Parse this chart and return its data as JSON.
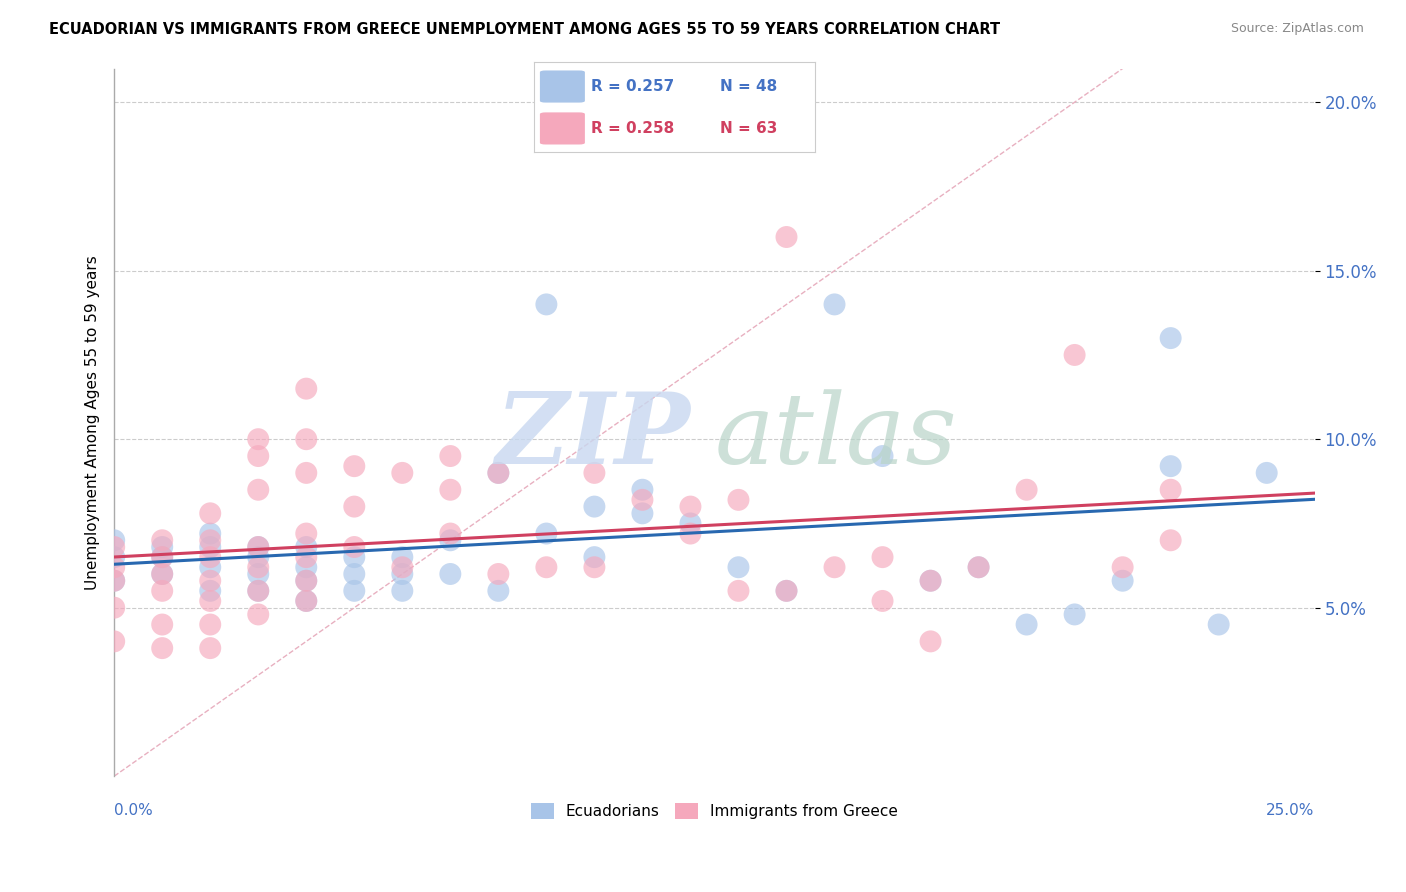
{
  "title": "ECUADORIAN VS IMMIGRANTS FROM GREECE UNEMPLOYMENT AMONG AGES 55 TO 59 YEARS CORRELATION CHART",
  "source": "Source: ZipAtlas.com",
  "ylabel": "Unemployment Among Ages 55 to 59 years",
  "legend_blue_r": "R = 0.257",
  "legend_blue_n": "N = 48",
  "legend_pink_r": "R = 0.258",
  "legend_pink_n": "N = 63",
  "xlim": [
    0.0,
    0.25
  ],
  "ylim": [
    0.0,
    0.21
  ],
  "yticks": [
    0.05,
    0.1,
    0.15,
    0.2
  ],
  "ytick_labels": [
    "5.0%",
    "10.0%",
    "15.0%",
    "20.0%"
  ],
  "blue_color": "#a8c4e8",
  "pink_color": "#f5a8bc",
  "blue_line_color": "#2868b0",
  "pink_line_color": "#d04060",
  "diagonal_color": "#e8b0c0",
  "watermark_zip": "ZIP",
  "watermark_atlas": "atlas",
  "ecuadorian_x": [
    0.0,
    0.0,
    0.0,
    0.01,
    0.01,
    0.01,
    0.02,
    0.02,
    0.02,
    0.02,
    0.03,
    0.03,
    0.03,
    0.03,
    0.04,
    0.04,
    0.04,
    0.04,
    0.05,
    0.05,
    0.05,
    0.06,
    0.06,
    0.06,
    0.07,
    0.07,
    0.08,
    0.08,
    0.09,
    0.09,
    0.1,
    0.1,
    0.11,
    0.11,
    0.12,
    0.13,
    0.14,
    0.15,
    0.16,
    0.17,
    0.18,
    0.19,
    0.2,
    0.21,
    0.22,
    0.22,
    0.23,
    0.24
  ],
  "ecuadorian_y": [
    0.065,
    0.07,
    0.058,
    0.06,
    0.065,
    0.068,
    0.055,
    0.062,
    0.068,
    0.072,
    0.055,
    0.06,
    0.065,
    0.068,
    0.052,
    0.058,
    0.062,
    0.068,
    0.055,
    0.06,
    0.065,
    0.055,
    0.06,
    0.065,
    0.06,
    0.07,
    0.055,
    0.09,
    0.072,
    0.14,
    0.065,
    0.08,
    0.078,
    0.085,
    0.075,
    0.062,
    0.055,
    0.14,
    0.095,
    0.058,
    0.062,
    0.045,
    0.048,
    0.058,
    0.092,
    0.13,
    0.045,
    0.09
  ],
  "greece_x": [
    0.0,
    0.0,
    0.0,
    0.0,
    0.0,
    0.01,
    0.01,
    0.01,
    0.01,
    0.01,
    0.01,
    0.02,
    0.02,
    0.02,
    0.02,
    0.02,
    0.02,
    0.02,
    0.03,
    0.03,
    0.03,
    0.03,
    0.03,
    0.03,
    0.03,
    0.04,
    0.04,
    0.04,
    0.04,
    0.04,
    0.04,
    0.04,
    0.05,
    0.05,
    0.05,
    0.06,
    0.06,
    0.07,
    0.07,
    0.07,
    0.08,
    0.08,
    0.09,
    0.1,
    0.1,
    0.11,
    0.12,
    0.12,
    0.13,
    0.13,
    0.14,
    0.14,
    0.15,
    0.16,
    0.16,
    0.17,
    0.17,
    0.18,
    0.19,
    0.2,
    0.21,
    0.22,
    0.22
  ],
  "greece_y": [
    0.04,
    0.05,
    0.058,
    0.062,
    0.068,
    0.038,
    0.045,
    0.055,
    0.06,
    0.065,
    0.07,
    0.038,
    0.045,
    0.052,
    0.058,
    0.065,
    0.07,
    0.078,
    0.048,
    0.055,
    0.062,
    0.068,
    0.085,
    0.095,
    0.1,
    0.052,
    0.058,
    0.065,
    0.072,
    0.09,
    0.1,
    0.115,
    0.068,
    0.08,
    0.092,
    0.062,
    0.09,
    0.072,
    0.085,
    0.095,
    0.06,
    0.09,
    0.062,
    0.062,
    0.09,
    0.082,
    0.072,
    0.08,
    0.055,
    0.082,
    0.16,
    0.055,
    0.062,
    0.052,
    0.065,
    0.058,
    0.04,
    0.062,
    0.085,
    0.125,
    0.062,
    0.07,
    0.085
  ]
}
